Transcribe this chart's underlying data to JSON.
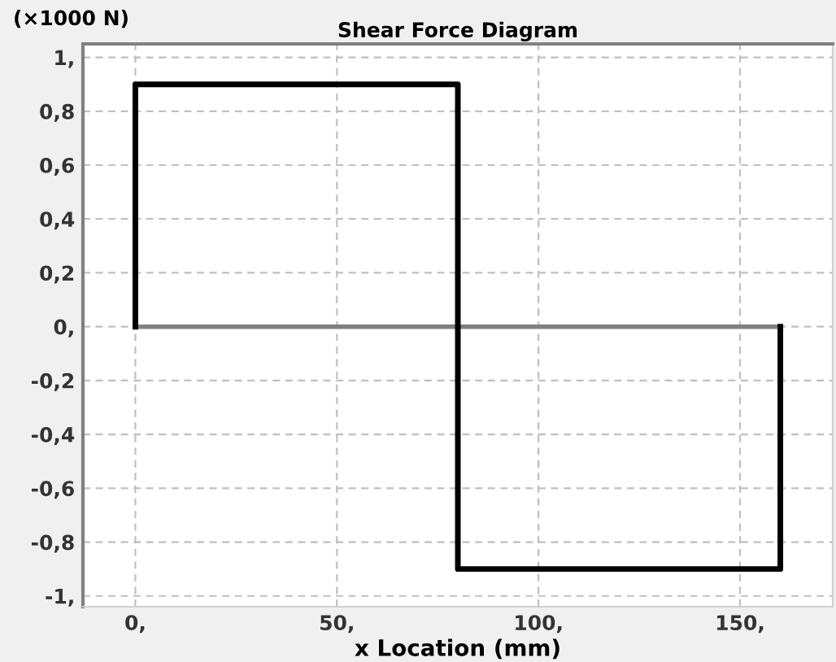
{
  "chart_data": {
    "type": "line",
    "title": "Shear Force Diagram",
    "xlabel": "x Location (mm)",
    "ylabel": "(×1000 N)",
    "series": [
      {
        "color": "#808080",
        "x": [
          0,
          160
        ],
        "values": [
          0,
          0
        ]
      },
      {
        "color": "#000000",
        "x": [
          0,
          0,
          80,
          80,
          160,
          160
        ],
        "values": [
          0,
          0.9,
          0.9,
          -0.9,
          -0.9,
          0
        ]
      }
    ],
    "xlim": [
      -13,
      173
    ],
    "xticks": [
      {
        "value": 0,
        "label": "0,"
      },
      {
        "value": 50,
        "label": "50,"
      },
      {
        "value": 100,
        "label": "100,"
      },
      {
        "value": 150,
        "label": "150,"
      }
    ],
    "ylim": [
      -1.04,
      1.05
    ],
    "yticks": [
      {
        "value": 1,
        "label": "1,"
      },
      {
        "value": 0.8,
        "label": "0,8"
      },
      {
        "value": 0.6,
        "label": "0,6"
      },
      {
        "value": 0.4,
        "label": "0,4"
      },
      {
        "value": 0.2,
        "label": "0,2"
      },
      {
        "value": 0,
        "label": "0,"
      },
      {
        "value": -0.2,
        "label": "-0,2"
      },
      {
        "value": -0.4,
        "label": "-0,4"
      },
      {
        "value": -0.6,
        "label": "-0,6"
      },
      {
        "value": -0.8,
        "label": "-0,8"
      },
      {
        "value": -1,
        "label": "-1,"
      }
    ],
    "grid": true,
    "line_style": "solid",
    "marker": "none"
  }
}
